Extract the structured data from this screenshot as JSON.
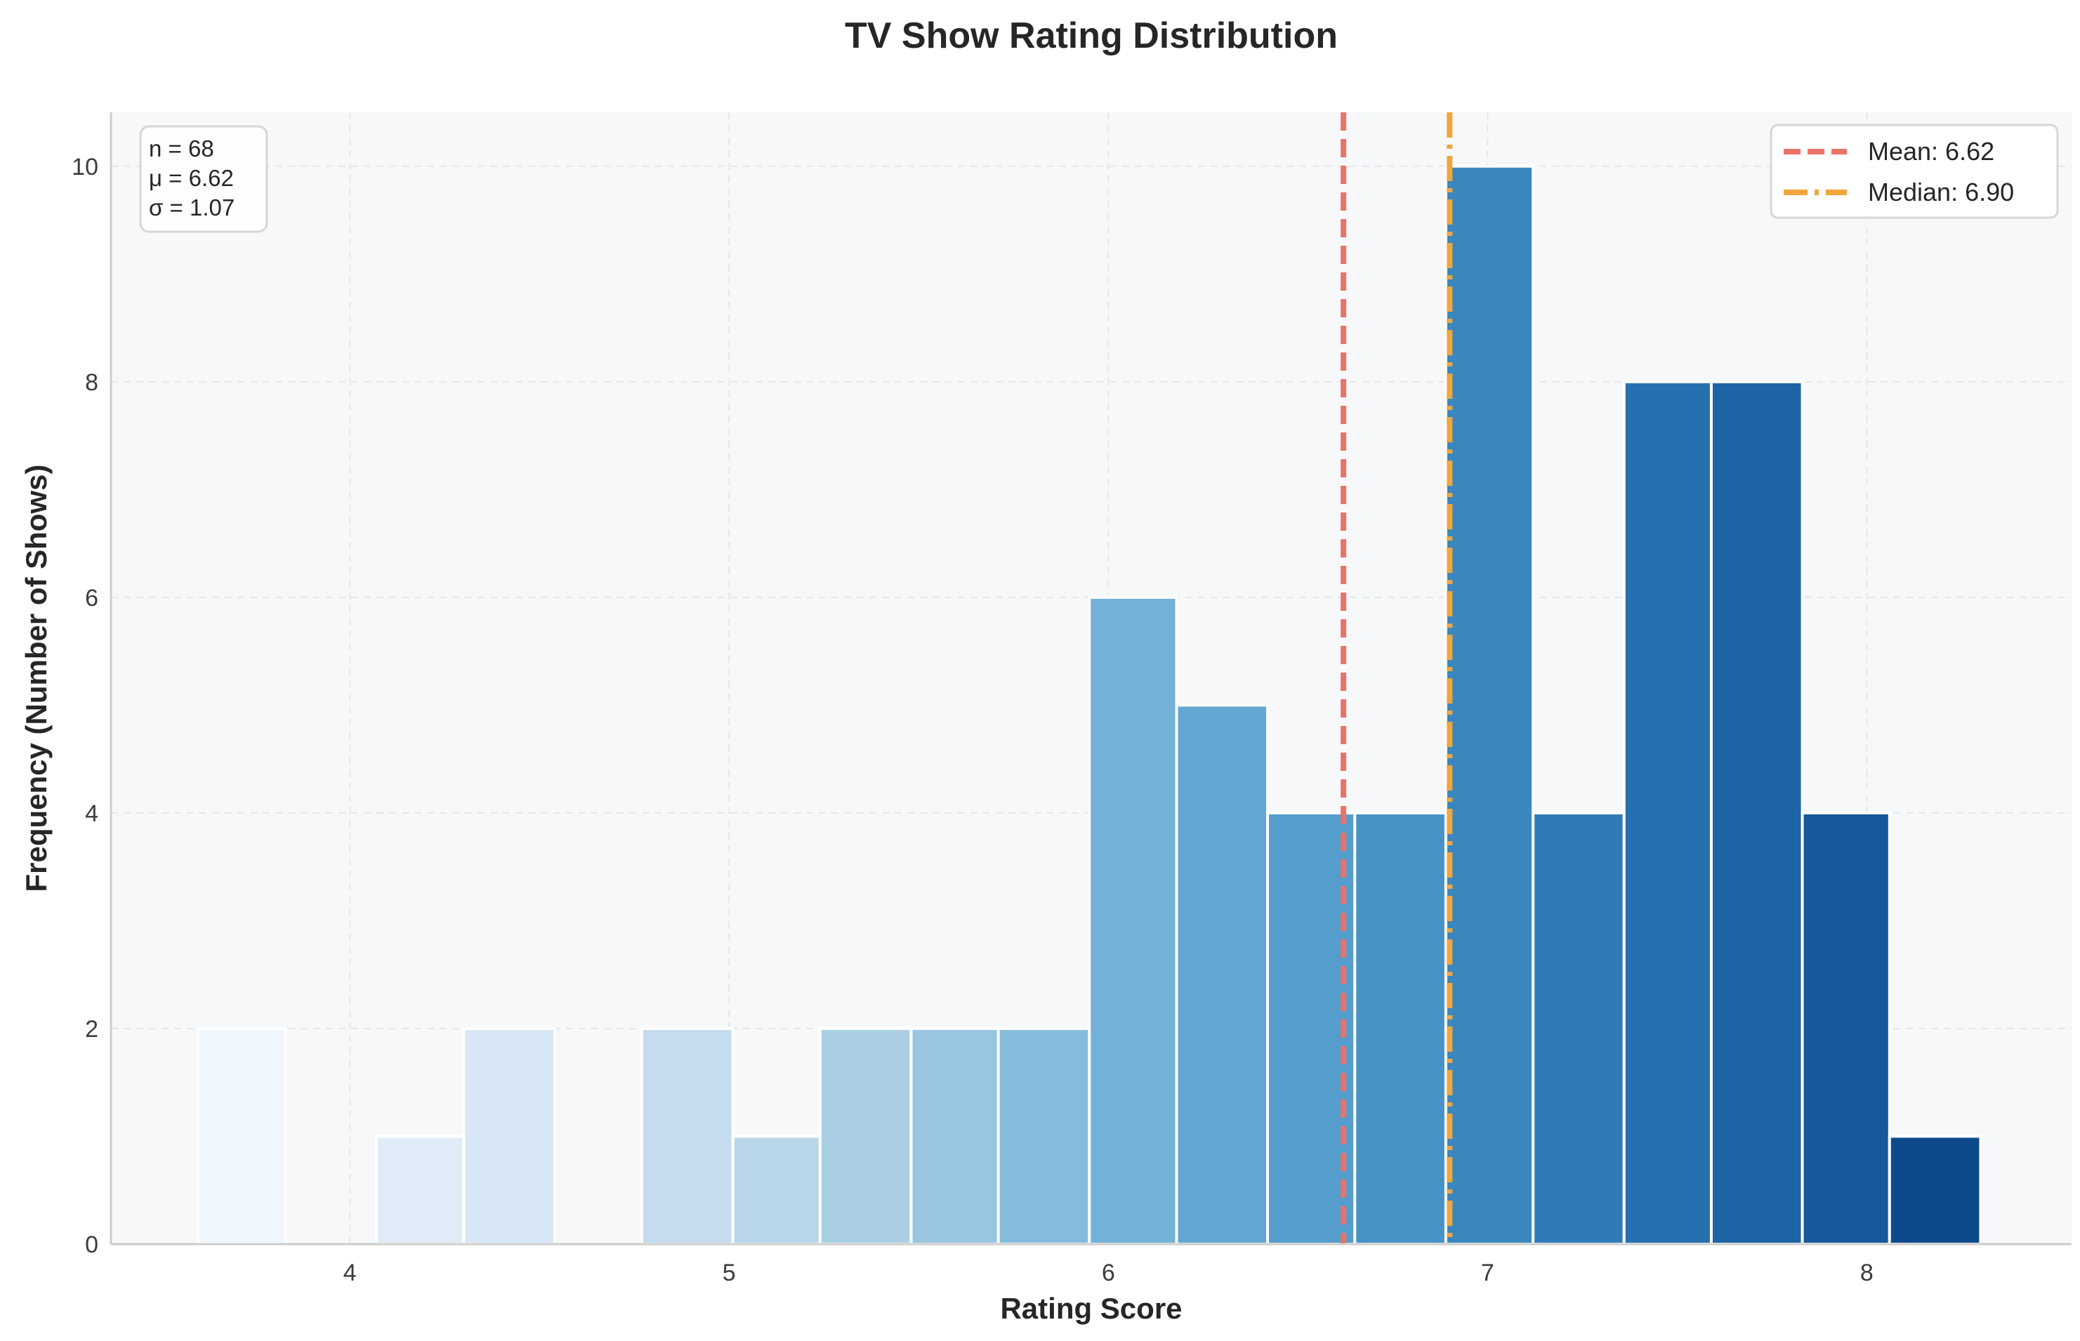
{
  "chart_data": {
    "type": "histogram",
    "title": "TV Show Rating Distribution",
    "xlabel": "Rating Score",
    "ylabel": "Frequency (Number of Shows)",
    "xlim": [
      3.37,
      8.54
    ],
    "ylim": [
      0,
      10.5
    ],
    "xticks": [
      "4",
      "5",
      "6",
      "7",
      "8"
    ],
    "yticks": [
      "0",
      "2",
      "4",
      "6",
      "8",
      "10"
    ],
    "grid": true,
    "bin_start": 3.6,
    "bin_width": 0.2346,
    "bins": [
      {
        "x0": 3.6,
        "x1": 3.83,
        "count": 2
      },
      {
        "x0": 3.83,
        "x1": 4.07,
        "count": 0
      },
      {
        "x0": 4.07,
        "x1": 4.3,
        "count": 1
      },
      {
        "x0": 4.3,
        "x1": 4.54,
        "count": 2
      },
      {
        "x0": 4.54,
        "x1": 4.77,
        "count": 0
      },
      {
        "x0": 4.77,
        "x1": 5.01,
        "count": 2
      },
      {
        "x0": 5.01,
        "x1": 5.24,
        "count": 1
      },
      {
        "x0": 5.24,
        "x1": 5.48,
        "count": 2
      },
      {
        "x0": 5.48,
        "x1": 5.71,
        "count": 2
      },
      {
        "x0": 5.71,
        "x1": 5.95,
        "count": 2
      },
      {
        "x0": 5.95,
        "x1": 6.18,
        "count": 6
      },
      {
        "x0": 6.18,
        "x1": 6.42,
        "count": 5
      },
      {
        "x0": 6.42,
        "x1": 6.65,
        "count": 4
      },
      {
        "x0": 6.65,
        "x1": 6.89,
        "count": 4
      },
      {
        "x0": 6.89,
        "x1": 7.12,
        "count": 10
      },
      {
        "x0": 7.12,
        "x1": 7.36,
        "count": 4
      },
      {
        "x0": 7.36,
        "x1": 7.59,
        "count": 8
      },
      {
        "x0": 7.59,
        "x1": 7.83,
        "count": 8
      },
      {
        "x0": 7.83,
        "x1": 8.06,
        "count": 4
      },
      {
        "x0": 8.06,
        "x1": 8.3,
        "count": 1
      }
    ],
    "bar_colors": [
      "#eff6fc",
      "#e7f0fa",
      "#dfebf7",
      "#d8e7f5",
      "#cde0f1",
      "#c4dcee",
      "#b9d6ea",
      "#aacfe5",
      "#98c6e1",
      "#85bcdc",
      "#73b2d8",
      "#63a8d3",
      "#549dcc",
      "#4792c6",
      "#3a87c0",
      "#2f7bb8",
      "#2670b0",
      "#1d64a5",
      "#165899",
      "#0d4a8a"
    ],
    "mean": 6.62,
    "median": 6.9,
    "legend": [
      {
        "label": "Mean: 6.62",
        "color": "#e8736a",
        "style": "dashed"
      },
      {
        "label": "Median: 6.90",
        "color": "#f0a63c",
        "style": "dashdot"
      }
    ],
    "legend_position": "top-right",
    "stats_box": [
      "n = 68",
      "μ = 6.62",
      "σ = 1.07"
    ],
    "stats_position": "top-left",
    "colors": {
      "plot_background": "#f7f8fa",
      "spine": "#cccccc",
      "grid": "#e4e6e9",
      "mean_line": "#e8736a",
      "median_line": "#f0a63c"
    }
  }
}
